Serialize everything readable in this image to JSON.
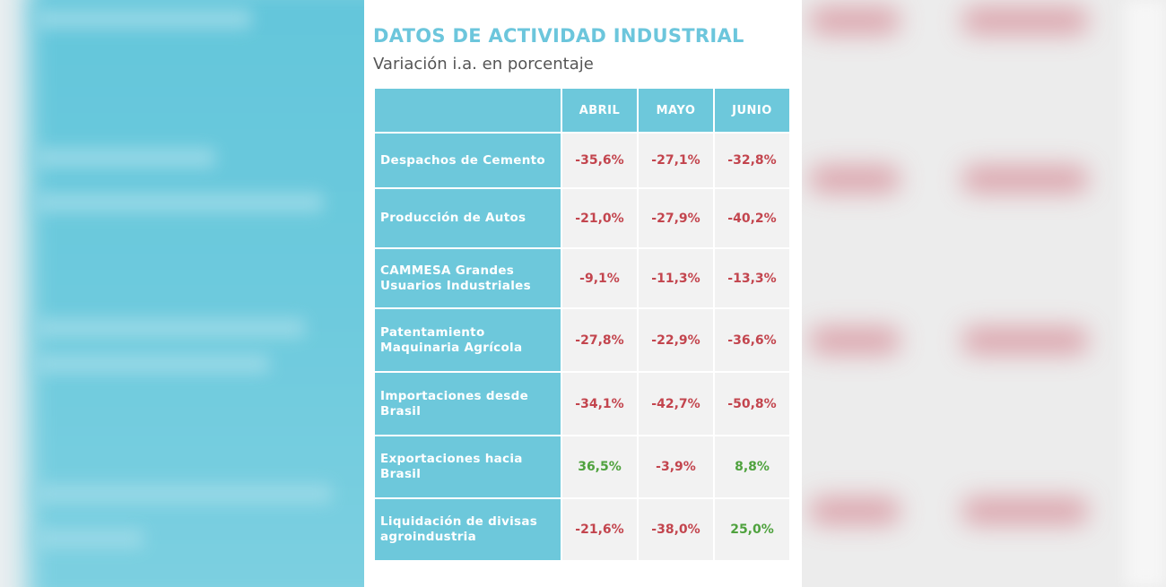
{
  "header": {
    "title": "DATOS DE ACTIVIDAD INDUSTRIAL",
    "subtitle": "Variación i.a. en porcentaje"
  },
  "table": {
    "columns": [
      "",
      "ABRIL",
      "MAYO",
      "JUNIO"
    ],
    "rows": [
      {
        "label": "Despachos de Cemento",
        "values": [
          "-35,6%",
          "-27,1%",
          "-32,8%"
        ]
      },
      {
        "label": "Producción de Autos",
        "values": [
          "-21,0%",
          "-27,9%",
          "-40,2%"
        ]
      },
      {
        "label": "CAMMESA Grandes Usuarios Industriales",
        "values": [
          "-9,1%",
          "-11,3%",
          "-13,3%"
        ]
      },
      {
        "label": "Patentamiento Maquinaria Agrícola",
        "values": [
          "-27,8%",
          "-22,9%",
          "-36,6%"
        ]
      },
      {
        "label": "Importaciones desde Brasil",
        "values": [
          "-34,1%",
          "-42,7%",
          "-50,8%"
        ]
      },
      {
        "label": "Exportaciones hacia Brasil",
        "values": [
          "36,5%",
          "-3,9%",
          "8,8%"
        ]
      },
      {
        "label": "Liquidación de divisas agroindustria",
        "values": [
          "-21,6%",
          "-38,0%",
          "25,0%"
        ]
      }
    ]
  },
  "colors": {
    "header_bg": "#6dc8db",
    "negative": "#c3454e",
    "positive": "#4fa23e"
  }
}
